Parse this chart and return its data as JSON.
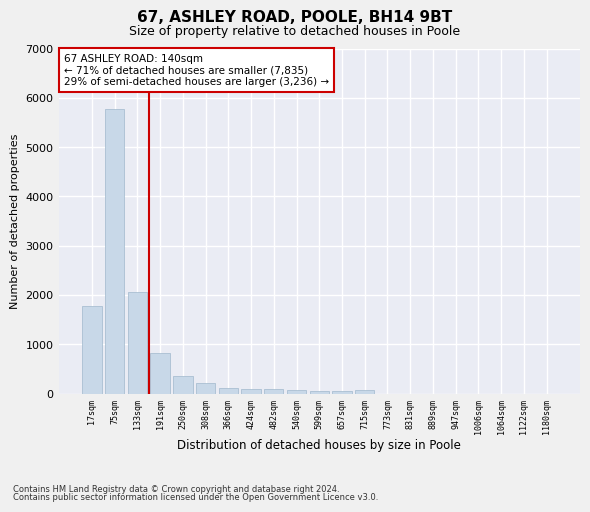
{
  "title": "67, ASHLEY ROAD, POOLE, BH14 9BT",
  "subtitle": "Size of property relative to detached houses in Poole",
  "xlabel": "Distribution of detached houses by size in Poole",
  "ylabel": "Number of detached properties",
  "bar_color": "#c8d8e8",
  "bar_edge_color": "#a0b8cc",
  "annotation_box_text": "67 ASHLEY ROAD: 140sqm\n← 71% of detached houses are smaller (7,835)\n29% of semi-detached houses are larger (3,236) →",
  "annotation_box_color": "#cc0000",
  "footnote1": "Contains HM Land Registry data © Crown copyright and database right 2024.",
  "footnote2": "Contains public sector information licensed under the Open Government Licence v3.0.",
  "categories": [
    "17sqm",
    "75sqm",
    "133sqm",
    "191sqm",
    "250sqm",
    "308sqm",
    "366sqm",
    "424sqm",
    "482sqm",
    "540sqm",
    "599sqm",
    "657sqm",
    "715sqm",
    "773sqm",
    "831sqm",
    "889sqm",
    "947sqm",
    "1006sqm",
    "1064sqm",
    "1122sqm",
    "1180sqm"
  ],
  "values": [
    1780,
    5780,
    2060,
    830,
    360,
    210,
    115,
    95,
    90,
    70,
    60,
    55,
    80,
    0,
    0,
    0,
    0,
    0,
    0,
    0,
    0
  ],
  "ylim": [
    0,
    7000
  ],
  "yticks": [
    0,
    1000,
    2000,
    3000,
    4000,
    5000,
    6000,
    7000
  ],
  "background_color": "#eaecf4",
  "grid_color": "#ffffff",
  "title_fontsize": 11,
  "subtitle_fontsize": 9,
  "vline_pos": 2.5
}
